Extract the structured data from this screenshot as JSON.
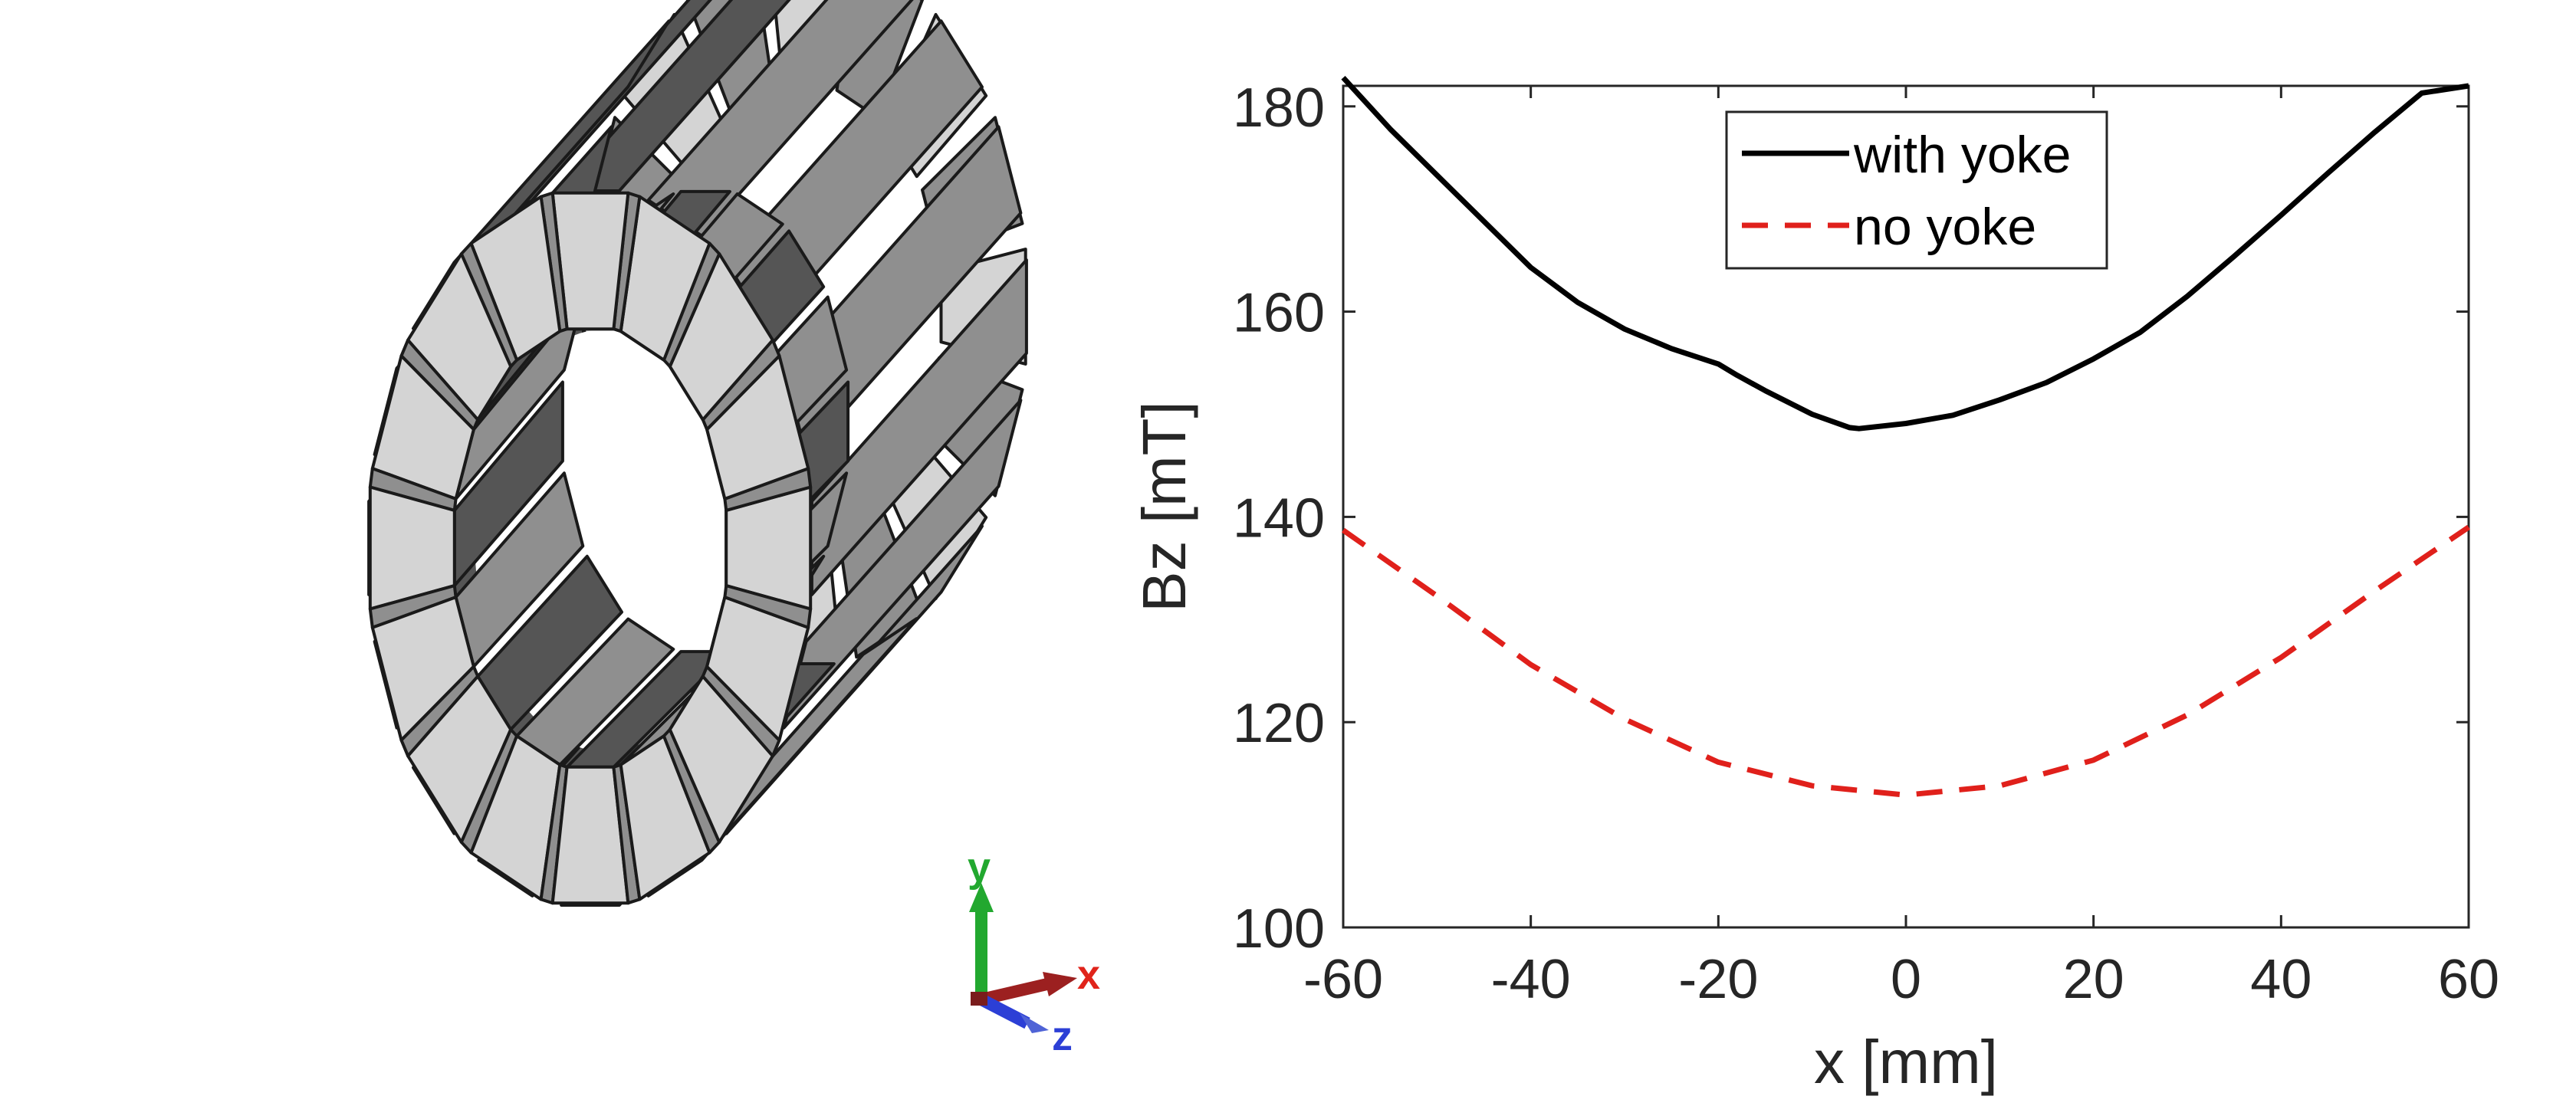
{
  "model_view": {
    "triad": {
      "x_label": "x",
      "y_label": "y",
      "z_label": "z",
      "x_color": "#e0241b",
      "y_color": "#22a82f",
      "z_color": "#2c3fd6"
    },
    "magnet_colors": {
      "light": "#d4d4d4",
      "mid": "#8f8f8f",
      "dark": "#555555",
      "edge": "#1a1a1a"
    }
  },
  "chart_data": {
    "type": "line",
    "title": "",
    "xlabel": "x [mm]",
    "ylabel": "Bz [mT]",
    "xlim": [
      -60,
      60
    ],
    "ylim": [
      100,
      182
    ],
    "xticks": [
      -60,
      -40,
      -20,
      0,
      20,
      40,
      60
    ],
    "yticks": [
      100,
      120,
      140,
      160,
      180
    ],
    "xtick_labels": [
      "-60",
      "-40",
      "-20",
      "0",
      "20",
      "40",
      "60"
    ],
    "ytick_labels": [
      "100",
      "120",
      "140",
      "160",
      "180"
    ],
    "grid": false,
    "legend": "top-center",
    "series": [
      {
        "name": "with yoke",
        "color": "#000000",
        "style": "solid",
        "x": [
          -60,
          -55,
          -50,
          -45,
          -40,
          -35,
          -30,
          -25,
          -20,
          -18,
          -15,
          -10,
          -6,
          -5,
          0,
          5,
          10,
          15,
          20,
          25,
          30,
          35,
          40,
          45,
          50,
          55,
          60
        ],
        "y": [
          182.8,
          177.8,
          173.3,
          168.8,
          164.3,
          160.9,
          158.3,
          156.4,
          154.9,
          153.8,
          152.3,
          150.0,
          148.7,
          148.6,
          149.1,
          149.9,
          151.4,
          153.1,
          155.4,
          158.0,
          161.5,
          165.4,
          169.4,
          173.5,
          177.5,
          181.3,
          182.0
        ]
      },
      {
        "name": "no yoke",
        "color": "#e0201b",
        "style": "dashed",
        "x": [
          -60,
          -50,
          -40,
          -30,
          -20,
          -10,
          0,
          10,
          20,
          30,
          40,
          50,
          60
        ],
        "y": [
          138.7,
          132.3,
          125.6,
          120.3,
          116.1,
          113.8,
          112.9,
          113.8,
          116.3,
          120.7,
          126.3,
          132.8,
          139.0
        ]
      }
    ]
  }
}
